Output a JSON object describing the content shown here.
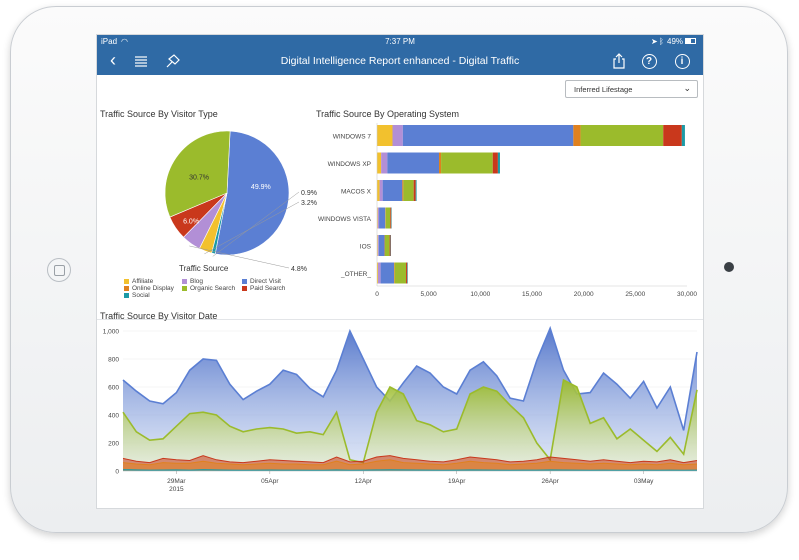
{
  "status_bar": {
    "device": "iPad",
    "time": "7:37 PM",
    "battery": "49%"
  },
  "nav": {
    "title": "Digital Intelligence Report enhanced - Digital Traffic",
    "icons": [
      "back-icon",
      "list-icon",
      "pin-icon",
      "share-icon",
      "help-icon",
      "info-icon"
    ]
  },
  "filter": {
    "selected": "Inferred Lifestage"
  },
  "legend": {
    "title": "Traffic Source",
    "items": [
      {
        "label": "Affiliate",
        "color": "#f2c12e"
      },
      {
        "label": "Blog",
        "color": "#b28fd6"
      },
      {
        "label": "Direct Visit",
        "color": "#5b7fd3"
      },
      {
        "label": "Online Display",
        "color": "#e0811f"
      },
      {
        "label": "Organic Search",
        "color": "#9bbb2c"
      },
      {
        "label": "Paid Search",
        "color": "#c9381c"
      },
      {
        "label": "Social",
        "color": "#1c9aa6"
      }
    ]
  },
  "chart_data": [
    {
      "type": "pie",
      "title": "Traffic Source By Visitor Type",
      "categories": [
        "Direct Visit",
        "Social",
        "Affiliate",
        "Blog",
        "Paid Search",
        "Organic Search"
      ],
      "values": [
        49.9,
        0.9,
        3.2,
        4.8,
        6.0,
        30.7
      ],
      "labels": [
        "49.9%",
        "0.9%",
        "3.2%",
        "4.8%",
        "6.0%",
        "30.7%"
      ],
      "colors": [
        "#5b7fd3",
        "#1c9aa6",
        "#f2c12e",
        "#b28fd6",
        "#c9381c",
        "#9bbb2c"
      ]
    },
    {
      "type": "bar",
      "orientation": "horizontal",
      "stacked": true,
      "title": "Traffic Source By Operating System",
      "categories": [
        "WINDOWS 7",
        "WINDOWS XP",
        "MACOS X",
        "WINDOWS VISTA",
        "IOS",
        "_OTHER_"
      ],
      "series": [
        {
          "name": "Affiliate",
          "values": [
            1500,
            400,
            250,
            80,
            80,
            100
          ]
        },
        {
          "name": "Blog",
          "values": [
            1000,
            600,
            300,
            120,
            100,
            250
          ]
        },
        {
          "name": "Direct Visit",
          "values": [
            16500,
            5000,
            1900,
            600,
            550,
            1300
          ]
        },
        {
          "name": "Online Display",
          "values": [
            700,
            200,
            100,
            40,
            40,
            60
          ]
        },
        {
          "name": "Organic Search",
          "values": [
            8000,
            5000,
            1000,
            450,
            450,
            1100
          ]
        },
        {
          "name": "Paid Search",
          "values": [
            1800,
            500,
            200,
            90,
            90,
            120
          ]
        },
        {
          "name": "Social",
          "values": [
            300,
            200,
            80,
            40,
            40,
            50
          ]
        }
      ],
      "xticks": [
        "0",
        "5,000",
        "10,000",
        "15,000",
        "20,000",
        "25,000",
        "30,000"
      ],
      "xlim": [
        0,
        30000
      ]
    },
    {
      "type": "area",
      "title": "Traffic Source By Visitor Date",
      "ylim": [
        0,
        1000
      ],
      "yticks": [
        "0",
        "200",
        "400",
        "600",
        "800",
        "1,000"
      ],
      "xticks": [
        {
          "label": "29Mar",
          "sub": "2015",
          "i": 4
        },
        {
          "label": "05Apr",
          "i": 11
        },
        {
          "label": "12Apr",
          "i": 18
        },
        {
          "label": "19Apr",
          "i": 25
        },
        {
          "label": "26Apr",
          "i": 32
        },
        {
          "label": "03May",
          "i": 39
        }
      ],
      "series": [
        {
          "name": "Direct Visit",
          "values": [
            650,
            570,
            500,
            480,
            560,
            720,
            800,
            790,
            620,
            510,
            570,
            620,
            720,
            690,
            590,
            530,
            720,
            1000,
            800,
            600,
            500,
            630,
            750,
            700,
            600,
            550,
            720,
            780,
            680,
            520,
            500,
            790,
            1020,
            720,
            550,
            560,
            700,
            620,
            520,
            640,
            450,
            600,
            290,
            850
          ]
        },
        {
          "name": "Organic Search",
          "values": [
            420,
            280,
            220,
            230,
            320,
            410,
            420,
            400,
            320,
            280,
            300,
            310,
            300,
            270,
            280,
            260,
            420,
            80,
            60,
            420,
            600,
            550,
            360,
            330,
            280,
            300,
            550,
            600,
            570,
            470,
            380,
            200,
            80,
            650,
            600,
            340,
            380,
            230,
            300,
            220,
            140,
            240,
            120,
            580
          ]
        },
        {
          "name": "Paid Search",
          "values": [
            90,
            70,
            60,
            90,
            80,
            75,
            110,
            80,
            65,
            60,
            70,
            80,
            75,
            70,
            65,
            60,
            100,
            65,
            70,
            100,
            110,
            90,
            80,
            70,
            65,
            80,
            100,
            90,
            80,
            65,
            70,
            80,
            100,
            90,
            80,
            70,
            80,
            70,
            60,
            70,
            65,
            80,
            60,
            75
          ]
        },
        {
          "name": "Online Display",
          "values": [
            60,
            50,
            45,
            60,
            55,
            55,
            70,
            55,
            50,
            45,
            50,
            55,
            50,
            50,
            45,
            45,
            70,
            45,
            50,
            70,
            80,
            60,
            55,
            50,
            45,
            55,
            70,
            60,
            55,
            45,
            50,
            55,
            70,
            60,
            55,
            50,
            55,
            50,
            45,
            50,
            45,
            55,
            45,
            50
          ]
        },
        {
          "name": "Social",
          "values": [
            10,
            8,
            6,
            7,
            8,
            6,
            10,
            8,
            6,
            5,
            6,
            7,
            6,
            6,
            5,
            5,
            8,
            5,
            6,
            8,
            9,
            8,
            7,
            6,
            5,
            6,
            8,
            7,
            6,
            5,
            6,
            6,
            8,
            7,
            6,
            5,
            6,
            5,
            5,
            6,
            5,
            6,
            5,
            6
          ]
        }
      ]
    }
  ]
}
